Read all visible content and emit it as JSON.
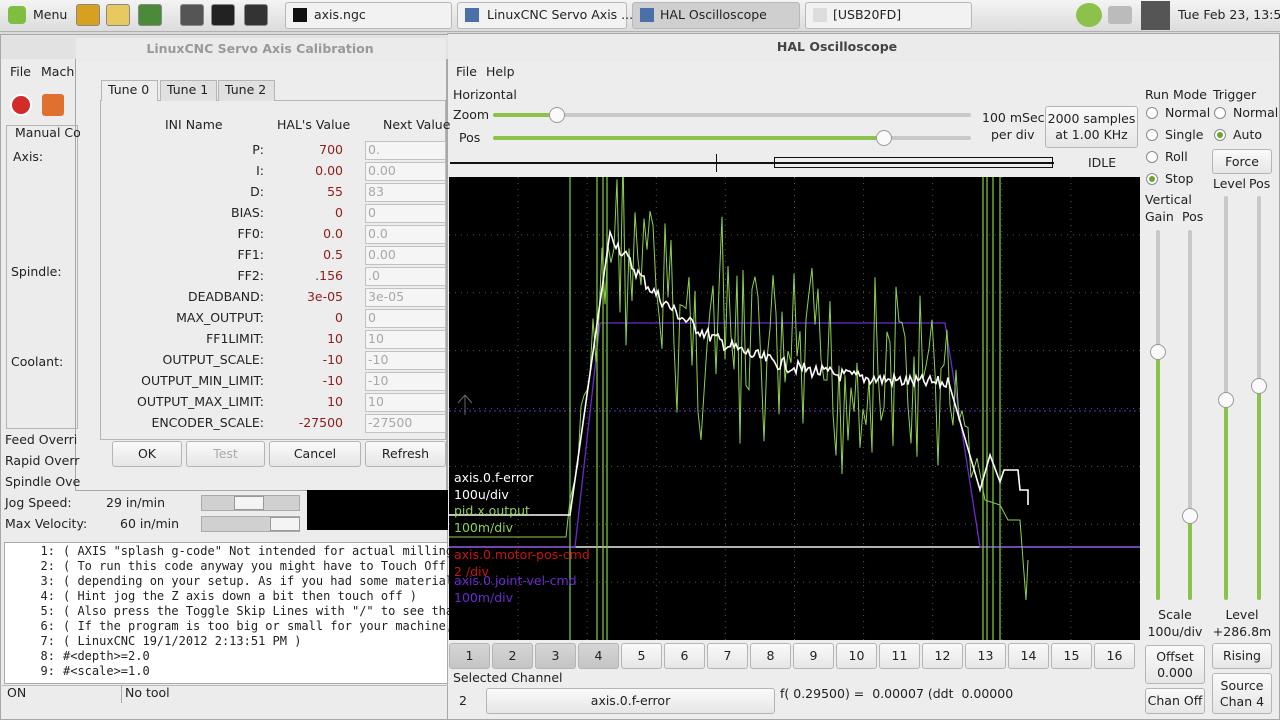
{
  "taskbar": {
    "menu": "Menu",
    "tasks": [
      "axis.ngc",
      "LinuxCNC Servo Axis ...",
      "HAL Oscilloscope",
      "[USB20FD]"
    ],
    "clock": "Tue Feb 23, 13:57"
  },
  "axis_window": {
    "menu": [
      "File",
      "Mach"
    ],
    "tab": "Manual Co",
    "labels": {
      "axis": "Axis:",
      "spindle": "Spindle:",
      "coolant": "Coolant:"
    },
    "overrides": [
      "Feed Overri",
      "Rapid Overr",
      "Spindle Ove"
    ],
    "jog_speed": {
      "label": "Jog Speed:",
      "value": "29 in/min"
    },
    "max_velocity": {
      "label": "Max Velocity:",
      "value": "60 in/min"
    },
    "gcode": [
      {
        "number": "1:",
        "text": "( AXIS \"splash g-code\" Not intended for actual milling"
      },
      {
        "number": "2:",
        "text": "( To run this code anyway you might have to Touch Off t"
      },
      {
        "number": "3:",
        "text": "( depending on your setup. As if you had some material"
      },
      {
        "number": "4:",
        "text": "( Hint jog the Z axis down a bit then touch off )"
      },
      {
        "number": "5:",
        "text": "( Also press the Toggle Skip Lines with \"/\" to see that"
      },
      {
        "number": "6:",
        "text": "( If the program is too big or small for your machine,"
      },
      {
        "number": "7:",
        "text": "( LinuxCNC 19/1/2012 2:13:51 PM )"
      },
      {
        "number": "8:",
        "text": "#<depth>=2.0"
      },
      {
        "number": "9:",
        "text": "#<scale>=1.0"
      }
    ],
    "status": [
      "ON",
      "No tool"
    ]
  },
  "calibration": {
    "title": "LinuxCNC Servo Axis Calibration",
    "tabs": [
      "Tune 0",
      "Tune 1",
      "Tune 2"
    ],
    "headers": [
      "INI Name",
      "HAL's Value",
      "Next Value"
    ],
    "rows": [
      [
        "P:",
        "700",
        "0."
      ],
      [
        "I:",
        "0.00",
        "0.00"
      ],
      [
        "D:",
        "55",
        "83"
      ],
      [
        "BIAS:",
        "0",
        "0"
      ],
      [
        "FF0:",
        "0.0",
        "0.0"
      ],
      [
        "FF1:",
        "0.5",
        "0.00"
      ],
      [
        "FF2:",
        ".156",
        ".0"
      ],
      [
        "DEADBAND:",
        "3e-05",
        "3e-05"
      ],
      [
        "MAX_OUTPUT:",
        "0",
        "0"
      ],
      [
        "FF1LIMIT:",
        "10",
        "10"
      ],
      [
        "OUTPUT_SCALE:",
        "-10",
        "-10"
      ],
      [
        "OUTPUT_MIN_LIMIT:",
        "-10",
        "-10"
      ],
      [
        "OUTPUT_MAX_LIMIT:",
        "10",
        "10"
      ],
      [
        "ENCODER_SCALE:",
        "-27500",
        "-27500"
      ]
    ],
    "buttons": [
      "OK",
      "Test",
      "Cancel",
      "Refresh"
    ]
  },
  "scope": {
    "title": "HAL Oscilloscope",
    "menu": [
      "File",
      "Help"
    ],
    "horizontal": "Horizontal",
    "zoom": "Zoom",
    "pos": "Pos",
    "time_div": [
      "100 mSec",
      "per div"
    ],
    "samples": [
      "2000 samples",
      "at 1.00 KHz"
    ],
    "state": "IDLE",
    "channel_labels": [
      {
        "text": "axis.0.f-error",
        "color": "#ffffff"
      },
      {
        "text": "100u/div",
        "color": "#ffffff"
      },
      {
        "text": "pid.x.output",
        "color": "#8fd14f"
      },
      {
        "text": "100m/div",
        "color": "#8fd14f"
      },
      {
        "text": "axis.0.motor-pos-cmd",
        "color": "#c81414"
      },
      {
        "text": "2 /div",
        "color": "#c81414"
      },
      {
        "text": "axis.0.joint-vel-cmd",
        "color": "#6a2ad0"
      },
      {
        "text": "100m/div",
        "color": "#6a2ad0"
      }
    ],
    "channel_buttons": [
      "1",
      "2",
      "3",
      "4",
      "5",
      "6",
      "7",
      "8",
      "9",
      "10",
      "11",
      "12",
      "13",
      "14",
      "15",
      "16"
    ],
    "selected_channel": {
      "label": "Selected Channel",
      "number": "2",
      "name": "axis.0.f-error"
    },
    "readout": "f( 0.29500) =  0.00007 (ddt  0.00000",
    "run_mode": {
      "label": "Run Mode",
      "options": [
        "Normal",
        "Single",
        "Roll",
        "Stop"
      ]
    },
    "trigger": {
      "label": "Trigger",
      "options": [
        "Normal",
        "Auto"
      ],
      "force": "Force",
      "level": "Level",
      "pos": "Pos"
    },
    "vertical": {
      "label": "Vertical",
      "gain": "Gain",
      "pos": "Pos"
    },
    "scale": {
      "label": "Scale",
      "value": "100u/div"
    },
    "level": {
      "label": "Level",
      "value": "+286.8m"
    },
    "offset": {
      "label": "Offset",
      "value": "0.000"
    },
    "rising": "Rising",
    "chan_off": "Chan Off",
    "source": {
      "label": "Source",
      "value": "Chan 4"
    }
  }
}
